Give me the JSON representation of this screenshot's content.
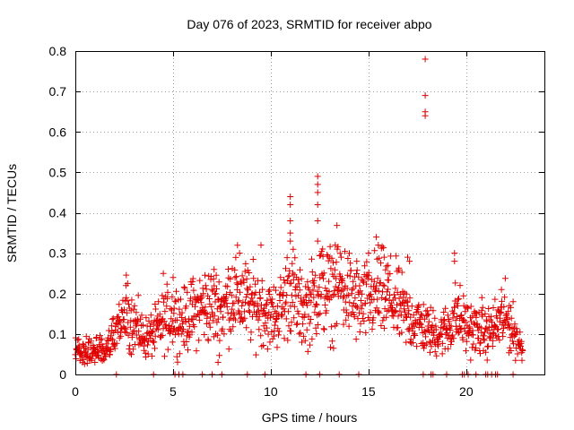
{
  "chart_data": {
    "type": "scatter",
    "title": "Day 076 of 2023, SRMTID for receiver abpo",
    "xlabel": "GPS time / hours",
    "ylabel": "SRMTID / TECUs",
    "xlim": [
      0,
      24
    ],
    "ylim": [
      0,
      0.8
    ],
    "xticks": [
      0,
      5,
      10,
      15,
      20
    ],
    "xtick_labels": [
      "0",
      "5",
      "10",
      "15",
      "20"
    ],
    "yticks": [
      0,
      0.1,
      0.2,
      0.3,
      0.4,
      0.5,
      0.6,
      0.7,
      0.8
    ],
    "ytick_labels": [
      "0",
      "0.1",
      "0.2",
      "0.3",
      "0.4",
      "0.5",
      "0.6",
      "0.7",
      "0.8"
    ],
    "grid": true,
    "marker": "plus",
    "color": "#e00000",
    "series": [
      {
        "name": "SRMTID",
        "envelope": [
          [
            0.0,
            0.07
          ],
          [
            0.5,
            0.06
          ],
          [
            1.0,
            0.06
          ],
          [
            1.5,
            0.05
          ],
          [
            2.0,
            0.09
          ],
          [
            2.5,
            0.15
          ],
          [
            3.0,
            0.13
          ],
          [
            3.5,
            0.09
          ],
          [
            4.0,
            0.1
          ],
          [
            4.5,
            0.13
          ],
          [
            5.0,
            0.15
          ],
          [
            5.5,
            0.13
          ],
          [
            6.0,
            0.15
          ],
          [
            6.5,
            0.17
          ],
          [
            7.0,
            0.17
          ],
          [
            7.5,
            0.16
          ],
          [
            8.0,
            0.2
          ],
          [
            8.5,
            0.19
          ],
          [
            9.0,
            0.17
          ],
          [
            9.5,
            0.17
          ],
          [
            10.0,
            0.14
          ],
          [
            10.5,
            0.16
          ],
          [
            11.0,
            0.22
          ],
          [
            11.5,
            0.16
          ],
          [
            12.0,
            0.17
          ],
          [
            12.5,
            0.22
          ],
          [
            13.0,
            0.2
          ],
          [
            13.5,
            0.22
          ],
          [
            14.0,
            0.2
          ],
          [
            14.5,
            0.17
          ],
          [
            15.0,
            0.18
          ],
          [
            15.5,
            0.2
          ],
          [
            16.0,
            0.19
          ],
          [
            16.5,
            0.17
          ],
          [
            17.0,
            0.14
          ],
          [
            17.5,
            0.13
          ],
          [
            18.0,
            0.11
          ],
          [
            18.5,
            0.1
          ],
          [
            19.0,
            0.11
          ],
          [
            19.5,
            0.15
          ],
          [
            20.0,
            0.12
          ],
          [
            20.5,
            0.11
          ],
          [
            21.0,
            0.1
          ],
          [
            21.5,
            0.12
          ],
          [
            22.0,
            0.14
          ],
          [
            22.5,
            0.1
          ],
          [
            22.9,
            0.06
          ]
        ],
        "peaks": [
          [
            2.6,
            0.19
          ],
          [
            4.5,
            0.25
          ],
          [
            5.0,
            0.24
          ],
          [
            6.0,
            0.23
          ],
          [
            7.1,
            0.26
          ],
          [
            8.4,
            0.3
          ],
          [
            9.5,
            0.32
          ],
          [
            11.0,
            0.44
          ],
          [
            11.0,
            0.42
          ],
          [
            11.0,
            0.38
          ],
          [
            11.0,
            0.35
          ],
          [
            11.0,
            0.33
          ],
          [
            12.4,
            0.49
          ],
          [
            12.4,
            0.47
          ],
          [
            12.4,
            0.45
          ],
          [
            12.4,
            0.42
          ],
          [
            12.4,
            0.38
          ],
          [
            12.4,
            0.33
          ],
          [
            13.3,
            0.32
          ],
          [
            13.4,
            0.31
          ],
          [
            13.6,
            0.29
          ],
          [
            14.4,
            0.28
          ],
          [
            15.0,
            0.3
          ],
          [
            15.4,
            0.34
          ],
          [
            15.5,
            0.32
          ],
          [
            15.8,
            0.29
          ],
          [
            16.0,
            0.27
          ],
          [
            17.0,
            0.29
          ],
          [
            17.1,
            0.28
          ],
          [
            17.9,
            0.78
          ],
          [
            17.9,
            0.69
          ],
          [
            17.9,
            0.65
          ],
          [
            17.9,
            0.64
          ],
          [
            19.4,
            0.3
          ],
          [
            19.4,
            0.28
          ],
          [
            20.8,
            0.19
          ],
          [
            21.8,
            0.21
          ],
          [
            22.2,
            0.17
          ],
          [
            7.3,
            0.03
          ],
          [
            1.0,
            0.03
          ]
        ],
        "zeros": [
          2.1,
          4.0,
          5.1,
          5.3,
          5.5,
          6.5,
          7.0,
          7.5,
          8.8,
          9.7,
          11.8,
          12.5,
          13.5,
          14.5,
          17.8,
          18.2,
          18.3,
          19.0,
          19.8,
          19.9,
          20.1,
          20.5,
          21.0,
          21.1,
          21.3,
          21.5,
          21.6,
          22.4
        ]
      }
    ]
  }
}
